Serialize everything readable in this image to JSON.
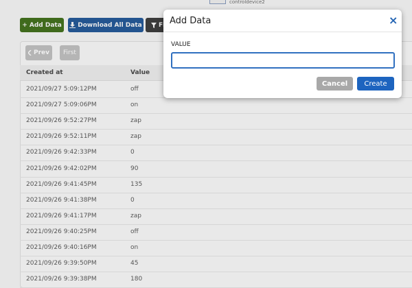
{
  "header": {
    "device": "controldevice2",
    "buttons": [
      "+ Add Data",
      "Download All Data",
      "Filter"
    ]
  },
  "pagination": [
    "Prev",
    "First"
  ],
  "table": {
    "columns": [
      "Created at",
      "Value"
    ],
    "rows": [
      [
        "2021/09/27 5:09:12PM",
        "off"
      ],
      [
        "2021/09/27 5:09:06PM",
        "on"
      ],
      [
        "2021/09/26 9:52:27PM",
        "zap"
      ],
      [
        "2021/09/26 9:52:11PM",
        "zap"
      ],
      [
        "2021/09/26 9:42:33PM",
        "0"
      ],
      [
        "2021/09/26 9:42:02PM",
        "90"
      ],
      [
        "2021/09/26 9:41:45PM",
        "135"
      ],
      [
        "2021/09/26 9:41:38PM",
        "0"
      ],
      [
        "2021/09/26 9:41:17PM",
        "zap"
      ],
      [
        "2021/09/26 9:40:25PM",
        "off"
      ],
      [
        "2021/09/26 9:40:16PM",
        "on"
      ],
      [
        "2021/09/26 9:39:50PM",
        "45"
      ],
      [
        "2021/09/26 9:39:38PM",
        "180"
      ]
    ]
  },
  "modal": {
    "title": "Add Data",
    "close": "×",
    "field_label": "VALUE",
    "buttons": [
      "Cancel",
      "Create"
    ]
  }
}
